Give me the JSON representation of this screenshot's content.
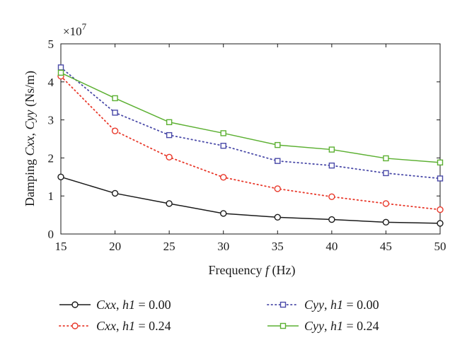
{
  "chart_data": {
    "type": "line",
    "x": [
      15,
      20,
      25,
      30,
      35,
      40,
      45,
      50
    ],
    "series": [
      {
        "name": "Cxx, h1 = 0.00",
        "color": "#1a1a1a",
        "marker": "circle",
        "dash": "solid",
        "values": [
          1.5,
          1.07,
          0.8,
          0.54,
          0.44,
          0.38,
          0.31,
          0.28
        ]
      },
      {
        "name": "Cxx, h1 = 0.24",
        "color": "#e8382a",
        "marker": "circle",
        "dash": "dotted",
        "values": [
          4.15,
          2.71,
          2.02,
          1.49,
          1.19,
          0.98,
          0.8,
          0.64
        ]
      },
      {
        "name": "Cyy, h1 = 0.00",
        "color": "#4a4aa8",
        "marker": "square",
        "dash": "dotted",
        "values": [
          4.38,
          3.19,
          2.6,
          2.32,
          1.92,
          1.8,
          1.6,
          1.46
        ]
      },
      {
        "name": "Cyy, h1 = 0.24",
        "color": "#5cb032",
        "marker": "square",
        "dash": "solid",
        "values": [
          4.24,
          3.57,
          2.94,
          2.65,
          2.34,
          2.22,
          1.99,
          1.88
        ]
      }
    ],
    "xlabel": {
      "pre": "Frequency ",
      "var": "f",
      "post": " (Hz)"
    },
    "ylabel": {
      "p1": "Damping ",
      "v1": "Cxx",
      "p2": ", ",
      "v2": "Cyy",
      "p3": " (Ns/m)"
    },
    "xlim": [
      15,
      50
    ],
    "ylim": [
      0,
      5
    ],
    "xticks": [
      "15",
      "20",
      "25",
      "30",
      "35",
      "40",
      "45",
      "50"
    ],
    "yticks": [
      "0",
      "1",
      "2",
      "3",
      "4",
      "5"
    ],
    "scale_factor": {
      "base": "×10",
      "exp": "7"
    },
    "grid": false,
    "legend_position": "bottom",
    "legend": [
      {
        "var": "Cxx",
        "sep": ", ",
        "param": "h1",
        "rest": " = 0.00"
      },
      {
        "var": "Cxx",
        "sep": ", ",
        "param": "h1",
        "rest": " = 0.24"
      },
      {
        "var": "Cyy",
        "sep": ", ",
        "param": "h1",
        "rest": " = 0.00"
      },
      {
        "var": "Cyy",
        "sep": ", ",
        "param": "h1",
        "rest": " = 0.24"
      }
    ]
  }
}
